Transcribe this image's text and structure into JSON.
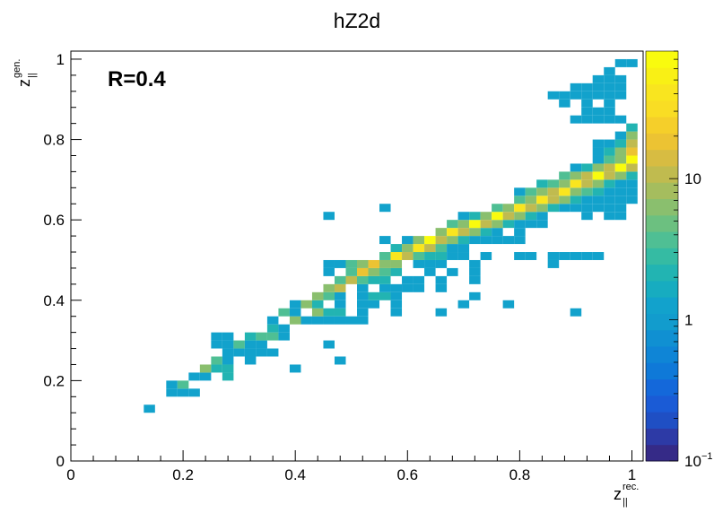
{
  "chart_data": {
    "type": "heatmap",
    "title": "hZ2d",
    "annotation": "R=0.4",
    "xlabel": {
      "base": "z",
      "sub": "||",
      "sup": "rec."
    },
    "ylabel": {
      "base": "z",
      "sub": "||",
      "sup": "gen."
    },
    "xlim": [
      0,
      1.02
    ],
    "ylim": [
      0,
      1.02
    ],
    "x_ticks": [
      "0",
      "0.2",
      "0.4",
      "0.6",
      "0.8",
      "1"
    ],
    "y_ticks": [
      "0",
      "0.2",
      "0.4",
      "0.6",
      "0.8",
      "1"
    ],
    "bin_width": 0.02,
    "z_scale": "log",
    "zlim": [
      0.1,
      80
    ],
    "z_ticks": [
      {
        "value": 0.1,
        "base": "10",
        "sup": "−1"
      },
      {
        "value": 1,
        "label": "1"
      },
      {
        "value": 10,
        "label": "10"
      }
    ],
    "palette": [
      "#352a87",
      "#1a5bd6",
      "#0f85d6",
      "#12a2cc",
      "#22b4b2",
      "#4fbf94",
      "#8abf6e",
      "#c0bb4f",
      "#ecc333",
      "#f9e51f",
      "#f9fb0e"
    ],
    "cells": [
      [
        0.14,
        0.13,
        1.0
      ],
      [
        0.18,
        0.17,
        1.0
      ],
      [
        0.2,
        0.17,
        1.0
      ],
      [
        0.22,
        0.17,
        1.0
      ],
      [
        0.18,
        0.19,
        1.0
      ],
      [
        0.2,
        0.19,
        3.0
      ],
      [
        0.22,
        0.21,
        1.0
      ],
      [
        0.24,
        0.21,
        1.0
      ],
      [
        0.28,
        0.21,
        2.0
      ],
      [
        0.24,
        0.23,
        4.0
      ],
      [
        0.26,
        0.23,
        2.0
      ],
      [
        0.28,
        0.23,
        2.0
      ],
      [
        0.4,
        0.23,
        1.0
      ],
      [
        0.26,
        0.25,
        3.0
      ],
      [
        0.28,
        0.25,
        1.0
      ],
      [
        0.32,
        0.25,
        1.0
      ],
      [
        0.48,
        0.25,
        1.0
      ],
      [
        0.28,
        0.27,
        1.0
      ],
      [
        0.3,
        0.27,
        1.0
      ],
      [
        0.32,
        0.27,
        1.0
      ],
      [
        0.34,
        0.27,
        1.0
      ],
      [
        0.36,
        0.27,
        1.0
      ],
      [
        0.26,
        0.29,
        1.0
      ],
      [
        0.28,
        0.29,
        1.0
      ],
      [
        0.3,
        0.29,
        3.0
      ],
      [
        0.32,
        0.29,
        1.0
      ],
      [
        0.34,
        0.29,
        1.0
      ],
      [
        0.46,
        0.29,
        1.0
      ],
      [
        0.26,
        0.31,
        1.0
      ],
      [
        0.28,
        0.31,
        1.0
      ],
      [
        0.32,
        0.31,
        2.0
      ],
      [
        0.34,
        0.31,
        3.0
      ],
      [
        0.36,
        0.31,
        3.0
      ],
      [
        0.38,
        0.31,
        1.0
      ],
      [
        0.36,
        0.33,
        2.0
      ],
      [
        0.38,
        0.33,
        1.0
      ],
      [
        0.36,
        0.35,
        1.0
      ],
      [
        0.4,
        0.35,
        4.0
      ],
      [
        0.42,
        0.35,
        1.0
      ],
      [
        0.44,
        0.35,
        1.0
      ],
      [
        0.46,
        0.35,
        1.0
      ],
      [
        0.48,
        0.35,
        1.0
      ],
      [
        0.5,
        0.35,
        1.0
      ],
      [
        0.52,
        0.35,
        1.0
      ],
      [
        0.38,
        0.37,
        3.0
      ],
      [
        0.4,
        0.37,
        1.0
      ],
      [
        0.44,
        0.37,
        4.0
      ],
      [
        0.46,
        0.37,
        2.0
      ],
      [
        0.48,
        0.37,
        2.0
      ],
      [
        0.52,
        0.37,
        1.0
      ],
      [
        0.58,
        0.37,
        1.0
      ],
      [
        0.66,
        0.37,
        1.0
      ],
      [
        0.9,
        0.37,
        1.0
      ],
      [
        0.4,
        0.39,
        1.0
      ],
      [
        0.42,
        0.39,
        6.0
      ],
      [
        0.44,
        0.39,
        2.0
      ],
      [
        0.48,
        0.39,
        1.0
      ],
      [
        0.52,
        0.39,
        1.0
      ],
      [
        0.54,
        0.39,
        1.0
      ],
      [
        0.58,
        0.39,
        1.0
      ],
      [
        0.7,
        0.39,
        1.0
      ],
      [
        0.78,
        0.39,
        1.0
      ],
      [
        0.44,
        0.41,
        6.0
      ],
      [
        0.46,
        0.41,
        3.0
      ],
      [
        0.48,
        0.41,
        1.0
      ],
      [
        0.52,
        0.41,
        1.0
      ],
      [
        0.54,
        0.41,
        2.0
      ],
      [
        0.56,
        0.41,
        2.0
      ],
      [
        0.58,
        0.41,
        1.0
      ],
      [
        0.72,
        0.41,
        1.0
      ],
      [
        0.46,
        0.43,
        5.0
      ],
      [
        0.48,
        0.43,
        8.0
      ],
      [
        0.52,
        0.43,
        1.0
      ],
      [
        0.56,
        0.43,
        1.0
      ],
      [
        0.58,
        0.43,
        1.0
      ],
      [
        0.6,
        0.43,
        1.0
      ],
      [
        0.62,
        0.43,
        1.0
      ],
      [
        0.66,
        0.43,
        1.0
      ],
      [
        0.48,
        0.45,
        3.0
      ],
      [
        0.5,
        0.45,
        12.0
      ],
      [
        0.52,
        0.45,
        3.0
      ],
      [
        0.54,
        0.45,
        2.0
      ],
      [
        0.56,
        0.45,
        2.0
      ],
      [
        0.6,
        0.45,
        1.0
      ],
      [
        0.62,
        0.45,
        1.0
      ],
      [
        0.66,
        0.45,
        1.0
      ],
      [
        0.72,
        0.45,
        1.0
      ],
      [
        0.46,
        0.47,
        1.0
      ],
      [
        0.5,
        0.47,
        3.0
      ],
      [
        0.52,
        0.47,
        15.0
      ],
      [
        0.54,
        0.47,
        5.0
      ],
      [
        0.56,
        0.47,
        3.0
      ],
      [
        0.58,
        0.47,
        2.0
      ],
      [
        0.64,
        0.47,
        1.0
      ],
      [
        0.68,
        0.47,
        1.0
      ],
      [
        0.72,
        0.47,
        1.0
      ],
      [
        0.46,
        0.49,
        1.0
      ],
      [
        0.48,
        0.49,
        1.0
      ],
      [
        0.5,
        0.49,
        3.0
      ],
      [
        0.52,
        0.49,
        5.0
      ],
      [
        0.54,
        0.49,
        22.0
      ],
      [
        0.56,
        0.49,
        6.0
      ],
      [
        0.58,
        0.49,
        4.0
      ],
      [
        0.62,
        0.49,
        1.0
      ],
      [
        0.64,
        0.49,
        1.0
      ],
      [
        0.66,
        0.49,
        1.0
      ],
      [
        0.72,
        0.49,
        1.0
      ],
      [
        0.86,
        0.49,
        1.0
      ],
      [
        0.56,
        0.51,
        3.0
      ],
      [
        0.58,
        0.51,
        30.0
      ],
      [
        0.6,
        0.51,
        8.0
      ],
      [
        0.62,
        0.51,
        3.0
      ],
      [
        0.64,
        0.51,
        2.0
      ],
      [
        0.66,
        0.51,
        2.0
      ],
      [
        0.68,
        0.51,
        1.0
      ],
      [
        0.74,
        0.51,
        1.0
      ],
      [
        0.8,
        0.51,
        1.0
      ],
      [
        0.82,
        0.51,
        1.0
      ],
      [
        0.86,
        0.51,
        1.0
      ],
      [
        0.88,
        0.51,
        1.0
      ],
      [
        0.9,
        0.51,
        1.0
      ],
      [
        0.92,
        0.51,
        1.0
      ],
      [
        0.94,
        0.51,
        1.0
      ],
      [
        0.58,
        0.53,
        2.0
      ],
      [
        0.6,
        0.53,
        6.0
      ],
      [
        0.62,
        0.53,
        35.0
      ],
      [
        0.64,
        0.53,
        8.0
      ],
      [
        0.66,
        0.53,
        3.0
      ],
      [
        0.68,
        0.53,
        1.0
      ],
      [
        0.7,
        0.53,
        1.0
      ],
      [
        0.56,
        0.55,
        1.0
      ],
      [
        0.6,
        0.55,
        1.0
      ],
      [
        0.62,
        0.55,
        5.0
      ],
      [
        0.64,
        0.55,
        45.0
      ],
      [
        0.66,
        0.55,
        10.0
      ],
      [
        0.68,
        0.55,
        4.0
      ],
      [
        0.7,
        0.55,
        2.0
      ],
      [
        0.72,
        0.55,
        1.0
      ],
      [
        0.74,
        0.55,
        1.0
      ],
      [
        0.76,
        0.55,
        1.0
      ],
      [
        0.8,
        0.55,
        1.0
      ],
      [
        0.66,
        0.57,
        5.0
      ],
      [
        0.68,
        0.57,
        40.0
      ],
      [
        0.7,
        0.57,
        12.0
      ],
      [
        0.72,
        0.57,
        4.0
      ],
      [
        0.74,
        0.57,
        2.0
      ],
      [
        0.76,
        0.57,
        1.0
      ],
      [
        0.8,
        0.57,
        1.0
      ],
      [
        0.68,
        0.59,
        3.0
      ],
      [
        0.7,
        0.59,
        6.0
      ],
      [
        0.72,
        0.59,
        50.0
      ],
      [
        0.74,
        0.59,
        10.0
      ],
      [
        0.76,
        0.59,
        5.0
      ],
      [
        0.78,
        0.59,
        2.0
      ],
      [
        0.8,
        0.59,
        1.0
      ],
      [
        0.82,
        0.59,
        1.0
      ],
      [
        0.84,
        0.59,
        1.0
      ],
      [
        0.7,
        0.61,
        1.0
      ],
      [
        0.72,
        0.61,
        2.0
      ],
      [
        0.74,
        0.61,
        5.0
      ],
      [
        0.76,
        0.61,
        45.0
      ],
      [
        0.78,
        0.61,
        8.0
      ],
      [
        0.8,
        0.61,
        4.0
      ],
      [
        0.82,
        0.61,
        2.0
      ],
      [
        0.84,
        0.61,
        1.0
      ],
      [
        0.92,
        0.61,
        1.0
      ],
      [
        0.96,
        0.61,
        1.0
      ],
      [
        0.98,
        0.61,
        1.0
      ],
      [
        0.76,
        0.63,
        3.0
      ],
      [
        0.78,
        0.63,
        6.0
      ],
      [
        0.8,
        0.63,
        40.0
      ],
      [
        0.82,
        0.63,
        8.0
      ],
      [
        0.84,
        0.63,
        4.0
      ],
      [
        0.86,
        0.63,
        2.0
      ],
      [
        0.88,
        0.63,
        1.0
      ],
      [
        0.9,
        0.63,
        1.0
      ],
      [
        0.92,
        0.63,
        1.0
      ],
      [
        0.94,
        0.63,
        1.0
      ],
      [
        0.96,
        0.63,
        1.0
      ],
      [
        0.98,
        0.63,
        1.0
      ],
      [
        0.8,
        0.65,
        3.0
      ],
      [
        0.82,
        0.65,
        6.0
      ],
      [
        0.84,
        0.65,
        35.0
      ],
      [
        0.86,
        0.65,
        10.0
      ],
      [
        0.88,
        0.65,
        5.0
      ],
      [
        0.9,
        0.65,
        2.0
      ],
      [
        0.92,
        0.65,
        1.0
      ],
      [
        0.94,
        0.65,
        1.0
      ],
      [
        0.96,
        0.65,
        1.0
      ],
      [
        0.98,
        0.65,
        1.0
      ],
      [
        1.0,
        0.65,
        1.0
      ],
      [
        0.8,
        0.67,
        1.0
      ],
      [
        0.82,
        0.67,
        3.0
      ],
      [
        0.84,
        0.67,
        5.0
      ],
      [
        0.86,
        0.67,
        8.0
      ],
      [
        0.88,
        0.67,
        30.0
      ],
      [
        0.9,
        0.67,
        6.0
      ],
      [
        0.92,
        0.67,
        3.0
      ],
      [
        0.94,
        0.67,
        2.0
      ],
      [
        0.96,
        0.67,
        1.0
      ],
      [
        0.98,
        0.67,
        1.0
      ],
      [
        1.0,
        0.67,
        1.0
      ],
      [
        0.84,
        0.69,
        2.0
      ],
      [
        0.86,
        0.69,
        3.0
      ],
      [
        0.88,
        0.69,
        6.0
      ],
      [
        0.9,
        0.69,
        40.0
      ],
      [
        0.92,
        0.69,
        8.0
      ],
      [
        0.94,
        0.69,
        4.0
      ],
      [
        0.96,
        0.69,
        2.0
      ],
      [
        0.98,
        0.69,
        1.0
      ],
      [
        1.0,
        0.69,
        1.0
      ],
      [
        0.88,
        0.71,
        3.0
      ],
      [
        0.9,
        0.71,
        5.0
      ],
      [
        0.92,
        0.71,
        10.0
      ],
      [
        0.94,
        0.71,
        50.0
      ],
      [
        0.96,
        0.71,
        10.0
      ],
      [
        0.98,
        0.71,
        4.0
      ],
      [
        1.0,
        0.71,
        2.0
      ],
      [
        0.9,
        0.73,
        1.0
      ],
      [
        0.92,
        0.73,
        2.0
      ],
      [
        0.94,
        0.73,
        4.0
      ],
      [
        0.96,
        0.73,
        8.0
      ],
      [
        0.98,
        0.73,
        60.0
      ],
      [
        1.0,
        0.73,
        12.0
      ],
      [
        0.94,
        0.75,
        1.0
      ],
      [
        0.96,
        0.75,
        3.0
      ],
      [
        0.98,
        0.75,
        6.0
      ],
      [
        1.0,
        0.75,
        70.0
      ],
      [
        0.94,
        0.77,
        1.0
      ],
      [
        0.96,
        0.77,
        2.0
      ],
      [
        0.98,
        0.77,
        5.0
      ],
      [
        1.0,
        0.77,
        15.0
      ],
      [
        0.96,
        0.79,
        1.0
      ],
      [
        0.98,
        0.79,
        2.0
      ],
      [
        1.0,
        0.79,
        8.0
      ],
      [
        0.98,
        0.81,
        1.0
      ],
      [
        1.0,
        0.81,
        4.0
      ],
      [
        1.0,
        0.83,
        2.0
      ],
      [
        0.86,
        0.91,
        1.0
      ],
      [
        0.88,
        0.91,
        1.0
      ],
      [
        0.9,
        0.91,
        1.0
      ],
      [
        0.92,
        0.91,
        1.0
      ],
      [
        0.94,
        0.91,
        1.0
      ],
      [
        0.96,
        0.91,
        1.0
      ],
      [
        0.98,
        0.91,
        1.0
      ],
      [
        0.9,
        0.93,
        1.0
      ],
      [
        0.92,
        0.93,
        1.0
      ],
      [
        0.94,
        0.93,
        1.0
      ],
      [
        0.96,
        0.93,
        1.0
      ],
      [
        0.98,
        0.93,
        1.0
      ],
      [
        0.94,
        0.95,
        1.0
      ],
      [
        0.96,
        0.95,
        1.0
      ],
      [
        0.98,
        0.95,
        1.0
      ],
      [
        0.96,
        0.97,
        1.0
      ],
      [
        0.98,
        0.99,
        1.0
      ],
      [
        1.0,
        0.99,
        1.0
      ],
      [
        0.9,
        0.85,
        1.0
      ],
      [
        0.92,
        0.85,
        1.0
      ],
      [
        0.94,
        0.85,
        1.0
      ],
      [
        0.96,
        0.85,
        1.0
      ],
      [
        0.98,
        0.85,
        1.0
      ],
      [
        0.92,
        0.87,
        1.0
      ],
      [
        0.94,
        0.87,
        1.0
      ],
      [
        0.96,
        0.87,
        1.0
      ],
      [
        0.88,
        0.89,
        1.0
      ],
      [
        0.92,
        0.89,
        1.0
      ],
      [
        0.96,
        0.89,
        1.0
      ],
      [
        0.98,
        0.81,
        1.0
      ],
      [
        0.94,
        0.79,
        1.0
      ],
      [
        0.98,
        0.79,
        1.0
      ],
      [
        0.96,
        0.77,
        1.0
      ],
      [
        0.94,
        0.75,
        1.0
      ],
      [
        0.56,
        0.63,
        1.0
      ],
      [
        0.46,
        0.61,
        1.0
      ],
      [
        0.72,
        0.61,
        1.0
      ],
      [
        0.78,
        0.55,
        1.0
      ],
      [
        0.68,
        0.53,
        1.0
      ],
      [
        0.58,
        0.51,
        1.0
      ],
      [
        0.62,
        0.51,
        1.0
      ],
      [
        0.66,
        0.51,
        1.0
      ],
      [
        0.7,
        0.51,
        1.0
      ]
    ]
  }
}
